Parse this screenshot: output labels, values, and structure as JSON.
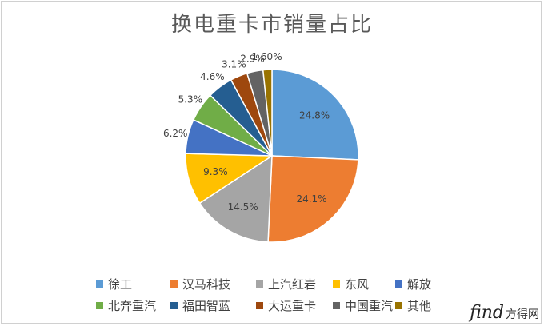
{
  "chart_data": {
    "type": "pie",
    "title": "换电重卡市销量占比",
    "categories": [
      "徐工",
      "汉马科技",
      "上汽红岩",
      "东风",
      "解放",
      "北奔重汽",
      "福田智蓝",
      "大运重卡",
      "中国重汽",
      "其他"
    ],
    "values": [
      24.8,
      24.1,
      14.5,
      9.3,
      6.2,
      5.3,
      4.6,
      3.1,
      2.9,
      1.6
    ],
    "labels": [
      "24.8%",
      "24.1%",
      "14.5%",
      "9.3%",
      "6.2%",
      "5.3%",
      "4.6%",
      "3.1%",
      "2.9%",
      "1.60%"
    ],
    "colors": [
      "#5b9bd5",
      "#ed7d31",
      "#a5a5a5",
      "#ffc000",
      "#4472c4",
      "#70ad47",
      "#255e91",
      "#9e480e",
      "#636363",
      "#997300"
    ],
    "legend_position": "bottom"
  },
  "watermark": {
    "brand": "find",
    "suffix": "方得网"
  }
}
